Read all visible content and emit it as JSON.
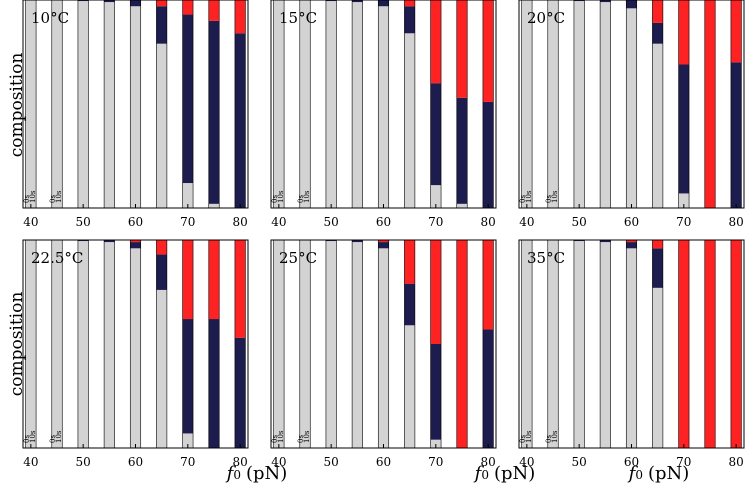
{
  "chart_data": {
    "type": "bar",
    "title": "",
    "ylabel": "composition",
    "xlabel_symbol": "f",
    "xlabel_subscript": "0",
    "xlabel_unit": "(pN)",
    "x_ticks": [
      40,
      50,
      60,
      70,
      80
    ],
    "xlim": [
      38.5,
      81.5
    ],
    "ylim": [
      0,
      1
    ],
    "bar_width": 2.0,
    "series_names": [
      "gray",
      "navy",
      "red"
    ],
    "colors": {
      "gray": "#d3d3d3",
      "navy": "#1c1c4e",
      "red": "#ff2222",
      "edge": "#000000"
    },
    "time_labels": [
      "0s",
      "10s"
    ],
    "panels": [
      {
        "title": "10°C",
        "bars": [
          {
            "x": 40,
            "g": 1.0,
            "n": 0.0,
            "r": 0.0
          },
          {
            "x": 45,
            "g": 1.0,
            "n": 0.0,
            "r": 0.0
          },
          {
            "x": 50,
            "g": 0.995,
            "n": 0.005,
            "r": 0.0
          },
          {
            "x": 55,
            "g": 0.99,
            "n": 0.01,
            "r": 0.0
          },
          {
            "x": 60,
            "g": 0.97,
            "n": 0.03,
            "r": 0.0
          },
          {
            "x": 65,
            "g": 0.79,
            "n": 0.18,
            "r": 0.03
          },
          {
            "x": 70,
            "g": 0.12,
            "n": 0.81,
            "r": 0.07
          },
          {
            "x": 75,
            "g": 0.02,
            "n": 0.88,
            "r": 0.1
          },
          {
            "x": 80,
            "g": 0.0,
            "n": 0.84,
            "r": 0.16
          }
        ]
      },
      {
        "title": "15°C",
        "bars": [
          {
            "x": 40,
            "g": 1.0,
            "n": 0.0,
            "r": 0.0
          },
          {
            "x": 45,
            "g": 1.0,
            "n": 0.0,
            "r": 0.0
          },
          {
            "x": 50,
            "g": 0.995,
            "n": 0.005,
            "r": 0.0
          },
          {
            "x": 55,
            "g": 0.99,
            "n": 0.01,
            "r": 0.0
          },
          {
            "x": 60,
            "g": 0.97,
            "n": 0.03,
            "r": 0.0
          },
          {
            "x": 65,
            "g": 0.84,
            "n": 0.13,
            "r": 0.03
          },
          {
            "x": 70,
            "g": 0.11,
            "n": 0.49,
            "r": 0.4
          },
          {
            "x": 75,
            "g": 0.02,
            "n": 0.51,
            "r": 0.47
          },
          {
            "x": 80,
            "g": 0.0,
            "n": 0.51,
            "r": 0.49
          }
        ]
      },
      {
        "title": "20°C",
        "bars": [
          {
            "x": 40,
            "g": 1.0,
            "n": 0.0,
            "r": 0.0
          },
          {
            "x": 45,
            "g": 1.0,
            "n": 0.0,
            "r": 0.0
          },
          {
            "x": 50,
            "g": 0.995,
            "n": 0.005,
            "r": 0.0
          },
          {
            "x": 55,
            "g": 0.99,
            "n": 0.01,
            "r": 0.0
          },
          {
            "x": 60,
            "g": 0.96,
            "n": 0.04,
            "r": 0.0
          },
          {
            "x": 65,
            "g": 0.79,
            "n": 0.1,
            "r": 0.11
          },
          {
            "x": 70,
            "g": 0.07,
            "n": 0.62,
            "r": 0.31
          },
          {
            "x": 75,
            "g": 0.0,
            "n": 0.0,
            "r": 1.0
          },
          {
            "x": 80,
            "g": 0.0,
            "n": 0.7,
            "r": 0.3
          }
        ]
      },
      {
        "title": "22.5°C",
        "bars": [
          {
            "x": 40,
            "g": 1.0,
            "n": 0.0,
            "r": 0.0
          },
          {
            "x": 45,
            "g": 1.0,
            "n": 0.0,
            "r": 0.0
          },
          {
            "x": 50,
            "g": 0.995,
            "n": 0.005,
            "r": 0.0
          },
          {
            "x": 55,
            "g": 0.99,
            "n": 0.01,
            "r": 0.0
          },
          {
            "x": 60,
            "g": 0.96,
            "n": 0.03,
            "r": 0.01
          },
          {
            "x": 65,
            "g": 0.76,
            "n": 0.17,
            "r": 0.07
          },
          {
            "x": 70,
            "g": 0.07,
            "n": 0.55,
            "r": 0.38
          },
          {
            "x": 75,
            "g": 0.0,
            "n": 0.62,
            "r": 0.38
          },
          {
            "x": 80,
            "g": 0.0,
            "n": 0.53,
            "r": 0.47
          }
        ]
      },
      {
        "title": "25°C",
        "bars": [
          {
            "x": 40,
            "g": 1.0,
            "n": 0.0,
            "r": 0.0
          },
          {
            "x": 45,
            "g": 1.0,
            "n": 0.0,
            "r": 0.0
          },
          {
            "x": 50,
            "g": 0.995,
            "n": 0.005,
            "r": 0.0
          },
          {
            "x": 55,
            "g": 0.99,
            "n": 0.01,
            "r": 0.0
          },
          {
            "x": 60,
            "g": 0.96,
            "n": 0.03,
            "r": 0.01
          },
          {
            "x": 65,
            "g": 0.59,
            "n": 0.2,
            "r": 0.21
          },
          {
            "x": 70,
            "g": 0.04,
            "n": 0.46,
            "r": 0.5
          },
          {
            "x": 75,
            "g": 0.0,
            "n": 0.0,
            "r": 1.0
          },
          {
            "x": 80,
            "g": 0.0,
            "n": 0.57,
            "r": 0.43
          }
        ]
      },
      {
        "title": "35°C",
        "bars": [
          {
            "x": 40,
            "g": 1.0,
            "n": 0.0,
            "r": 0.0
          },
          {
            "x": 45,
            "g": 1.0,
            "n": 0.0,
            "r": 0.0
          },
          {
            "x": 50,
            "g": 0.995,
            "n": 0.005,
            "r": 0.0
          },
          {
            "x": 55,
            "g": 0.99,
            "n": 0.01,
            "r": 0.0
          },
          {
            "x": 60,
            "g": 0.96,
            "n": 0.03,
            "r": 0.01
          },
          {
            "x": 65,
            "g": 0.77,
            "n": 0.19,
            "r": 0.04
          },
          {
            "x": 70,
            "g": 0.0,
            "n": 0.0,
            "r": 1.0
          },
          {
            "x": 75,
            "g": 0.0,
            "n": 0.0,
            "r": 1.0
          },
          {
            "x": 80,
            "g": 0.0,
            "n": 0.0,
            "r": 1.0
          }
        ]
      }
    ]
  }
}
